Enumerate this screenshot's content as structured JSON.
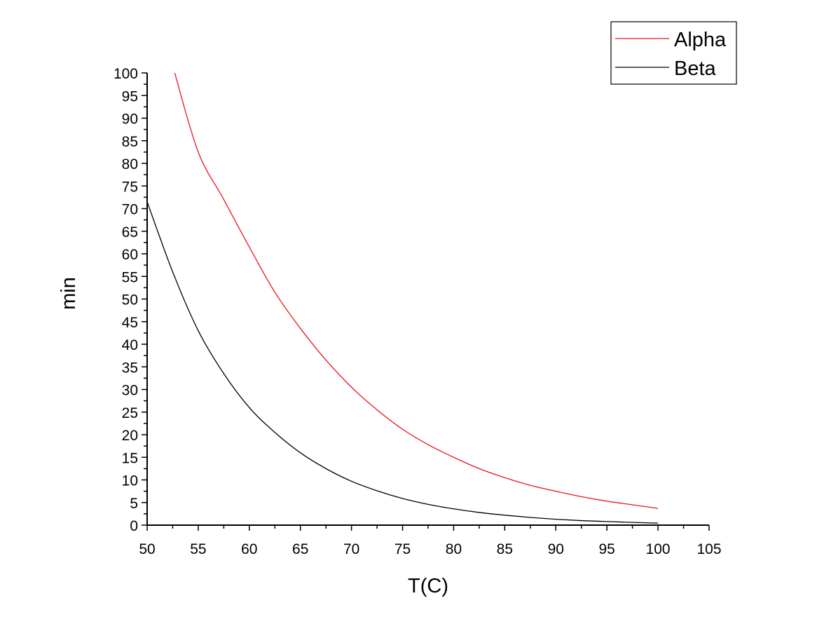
{
  "chart_data": {
    "type": "line",
    "title": "",
    "xlabel": "T(C)",
    "ylabel": "min",
    "xlim": [
      50,
      105
    ],
    "ylim": [
      0,
      100
    ],
    "x_ticks": [
      50,
      55,
      60,
      65,
      70,
      75,
      80,
      85,
      90,
      95,
      100,
      105
    ],
    "y_ticks": [
      0,
      5,
      10,
      15,
      20,
      25,
      30,
      35,
      40,
      45,
      50,
      55,
      60,
      65,
      70,
      75,
      80,
      85,
      90,
      95,
      100
    ],
    "grid": false,
    "legend_position": "top-right",
    "series": [
      {
        "name": "Alpha",
        "color": "#e8141b",
        "x": [
          52.7,
          55,
          57.5,
          60,
          62.5,
          65,
          67.5,
          70,
          72.5,
          75,
          77.5,
          80,
          82.5,
          85,
          87.5,
          90,
          92.5,
          95,
          97.5,
          100
        ],
        "y": [
          100,
          82.5,
          72,
          61.5,
          51.5,
          43.5,
          36.5,
          30.5,
          25.5,
          21.2,
          17.8,
          15,
          12.5,
          10.5,
          8.8,
          7.5,
          6.3,
          5.3,
          4.5,
          3.7
        ]
      },
      {
        "name": "Beta",
        "color": "#000000",
        "x": [
          50,
          52.5,
          55,
          57.5,
          60,
          62.5,
          65,
          67.5,
          70,
          72.5,
          75,
          77.5,
          80,
          82.5,
          85,
          87.5,
          90,
          92.5,
          95,
          97.5,
          100
        ],
        "y": [
          71.5,
          56,
          43,
          33.5,
          26,
          20.5,
          16,
          12.5,
          9.7,
          7.6,
          5.9,
          4.6,
          3.6,
          2.8,
          2.2,
          1.7,
          1.3,
          1,
          0.8,
          0.6,
          0.45
        ]
      }
    ]
  }
}
